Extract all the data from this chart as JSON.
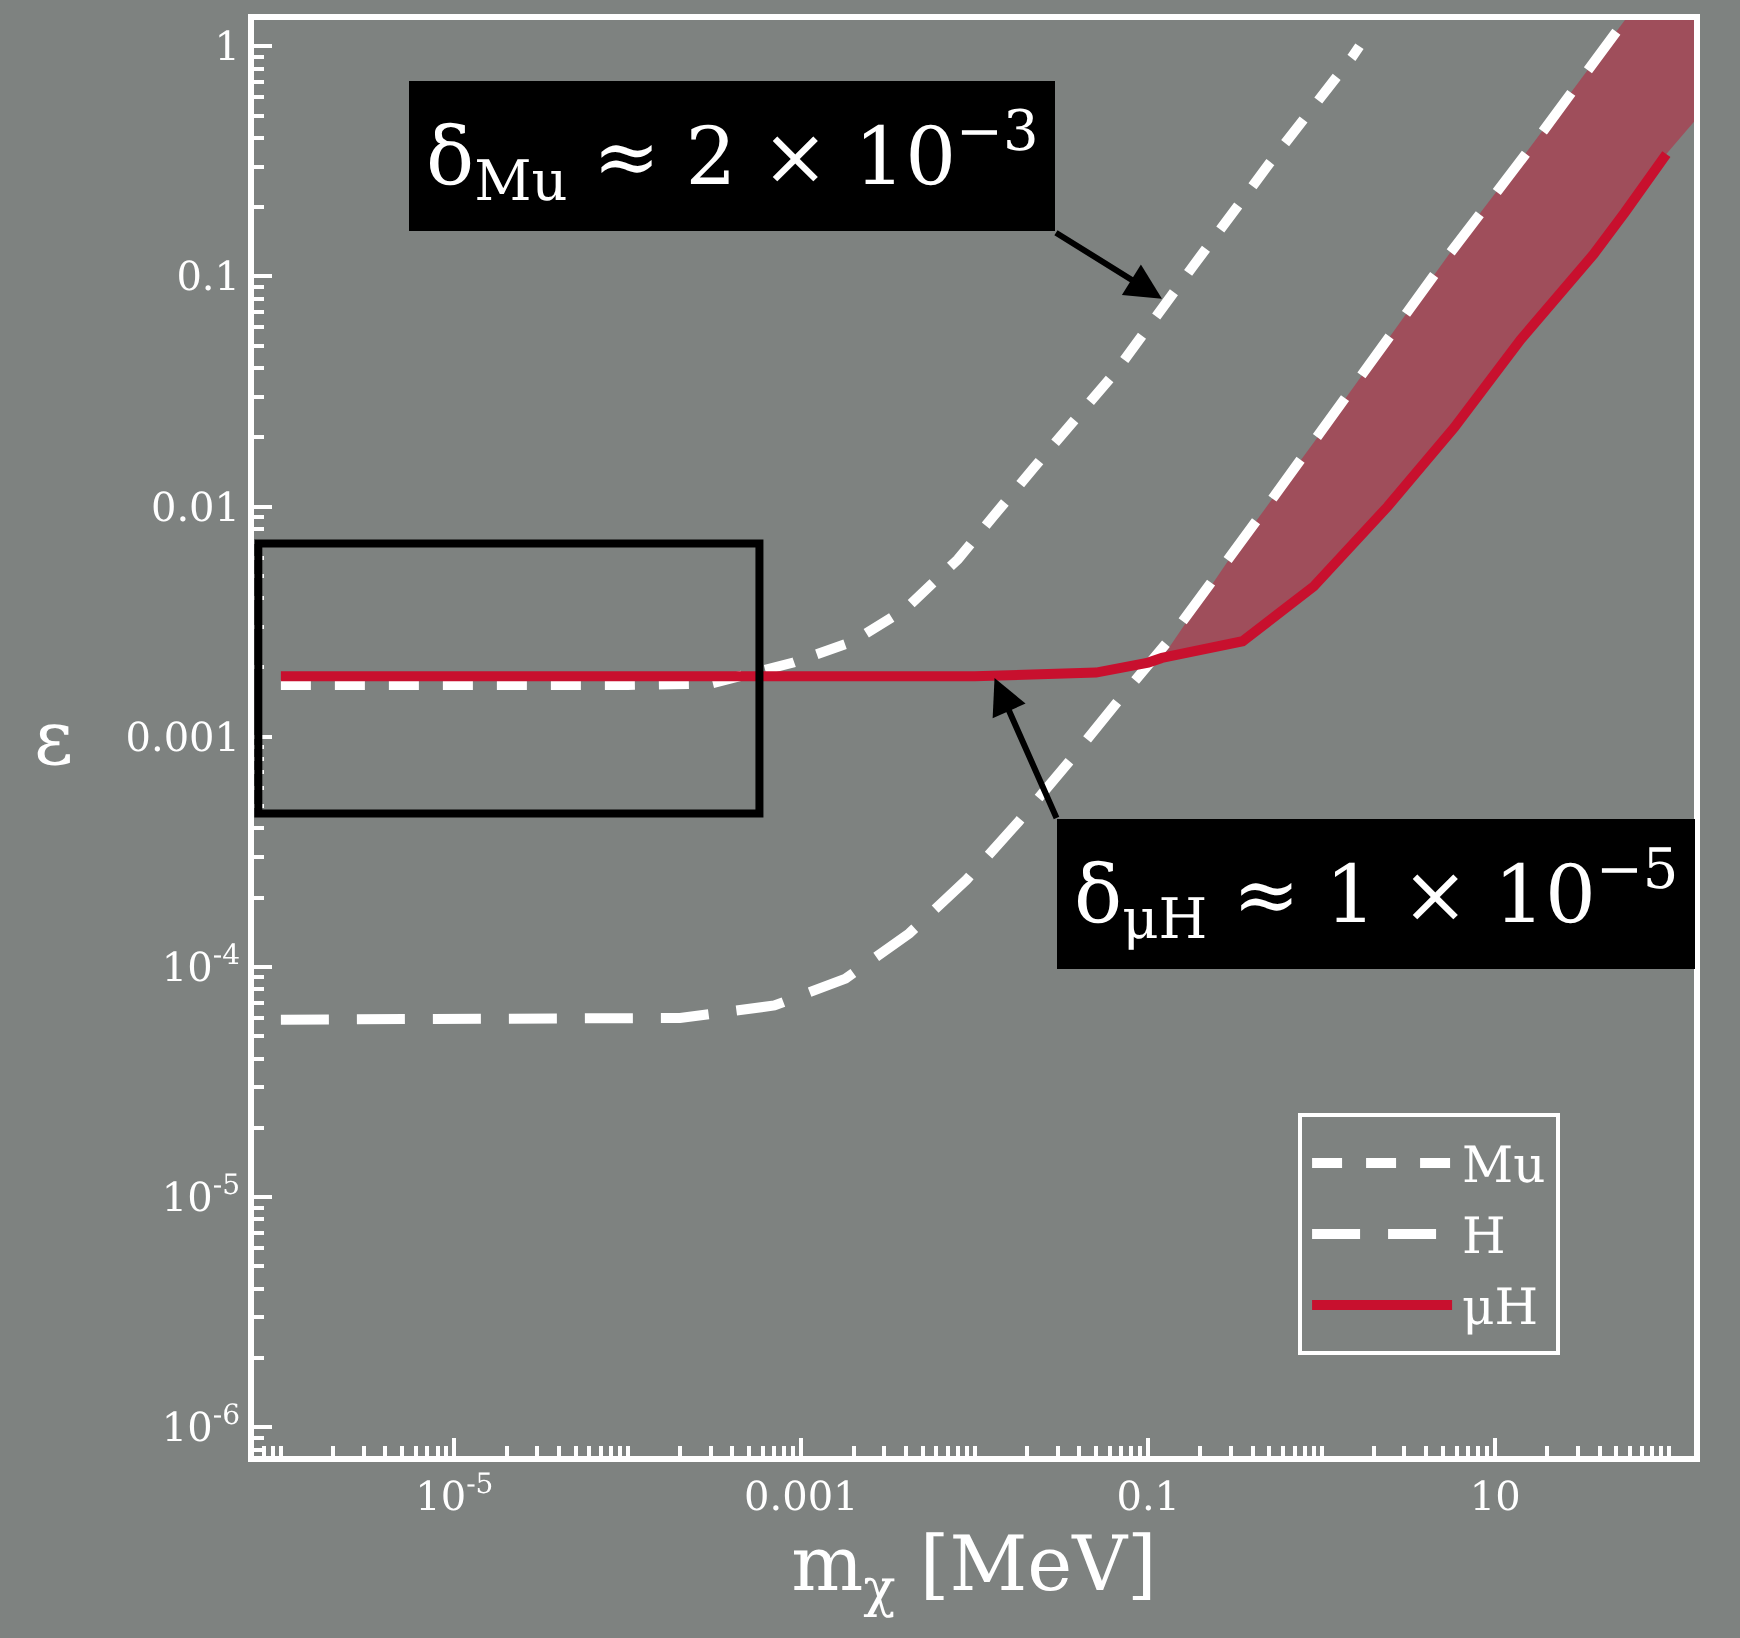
{
  "chart_data": {
    "type": "line",
    "xlabel": "m$_{χ}$ [MeV]",
    "ylabel": "ε",
    "log": "xy",
    "xlim": [
      7e-07,
      140
    ],
    "ylim": [
      7.5e-07,
      1.3
    ],
    "xticks": [
      {
        "value": 8e-07,
        "label": null
      },
      {
        "value": 9e-07,
        "label": null
      },
      {
        "value": 1e-06,
        "label": null
      },
      {
        "value": 2e-06,
        "label": null
      },
      {
        "value": 3e-06,
        "label": null
      },
      {
        "value": 4e-06,
        "label": null
      },
      {
        "value": 5e-06,
        "label": null
      },
      {
        "value": 6e-06,
        "label": null
      },
      {
        "value": 7e-06,
        "label": null
      },
      {
        "value": 8e-06,
        "label": null
      },
      {
        "value": 9e-06,
        "label": null
      },
      {
        "value": 1e-05,
        "label": "10$^{-5}$"
      },
      {
        "value": 2e-05,
        "label": null
      },
      {
        "value": 3e-05,
        "label": null
      },
      {
        "value": 4e-05,
        "label": null
      },
      {
        "value": 5e-05,
        "label": null
      },
      {
        "value": 6e-05,
        "label": null
      },
      {
        "value": 7e-05,
        "label": null
      },
      {
        "value": 8e-05,
        "label": null
      },
      {
        "value": 9e-05,
        "label": null
      },
      {
        "value": 0.0001,
        "label": null
      },
      {
        "value": 0.0002,
        "label": null
      },
      {
        "value": 0.0003,
        "label": null
      },
      {
        "value": 0.0004,
        "label": null
      },
      {
        "value": 0.0005,
        "label": null
      },
      {
        "value": 0.0006,
        "label": null
      },
      {
        "value": 0.0007,
        "label": null
      },
      {
        "value": 0.0008,
        "label": null
      },
      {
        "value": 0.0009,
        "label": null
      },
      0.001,
      {
        "value": 0.002,
        "label": null
      },
      {
        "value": 0.003,
        "label": null
      },
      {
        "value": 0.004,
        "label": null
      },
      {
        "value": 0.005,
        "label": null
      },
      {
        "value": 0.006,
        "label": null
      },
      {
        "value": 0.007,
        "label": null
      },
      {
        "value": 0.008,
        "label": null
      },
      {
        "value": 0.009,
        "label": null
      },
      {
        "value": 0.01,
        "label": null
      },
      {
        "value": 0.02,
        "label": null
      },
      {
        "value": 0.03,
        "label": null
      },
      {
        "value": 0.04,
        "label": null
      },
      {
        "value": 0.05,
        "label": null
      },
      {
        "value": 0.06,
        "label": null
      },
      {
        "value": 0.07,
        "label": null
      },
      {
        "value": 0.08,
        "label": null
      },
      {
        "value": 0.09,
        "label": null
      },
      0.1,
      {
        "value": 0.2,
        "label": null
      },
      {
        "value": 0.3,
        "label": null
      },
      {
        "value": 0.4,
        "label": null
      },
      {
        "value": 0.5,
        "label": null
      },
      {
        "value": 0.6,
        "label": null
      },
      {
        "value": 0.7,
        "label": null
      },
      {
        "value": 0.8,
        "label": null
      },
      {
        "value": 0.9,
        "label": null
      },
      {
        "value": 1,
        "label": null
      },
      {
        "value": 2,
        "label": null
      },
      {
        "value": 3,
        "label": null
      },
      {
        "value": 4,
        "label": null
      },
      {
        "value": 5,
        "label": null
      },
      {
        "value": 6,
        "label": null
      },
      {
        "value": 7,
        "label": null
      },
      {
        "value": 8,
        "label": null
      },
      {
        "value": 9,
        "label": null
      },
      10,
      {
        "value": 20,
        "label": null
      },
      {
        "value": 30,
        "label": null
      },
      {
        "value": 40,
        "label": null
      },
      {
        "value": 50,
        "label": null
      },
      {
        "value": 60,
        "label": null
      },
      {
        "value": 70,
        "label": null
      },
      {
        "value": 80,
        "label": null
      },
      {
        "value": 90,
        "label": null
      },
      {
        "value": 100,
        "label": null
      }
    ],
    "yticks": [
      {
        "value": 8e-07,
        "label": null
      },
      {
        "value": 9e-07,
        "label": null
      },
      {
        "value": 1e-06,
        "label": "10$^{-6}$"
      },
      {
        "value": 2e-06,
        "label": null
      },
      {
        "value": 3e-06,
        "label": null
      },
      {
        "value": 4e-06,
        "label": null
      },
      {
        "value": 5e-06,
        "label": null
      },
      {
        "value": 6e-06,
        "label": null
      },
      {
        "value": 7e-06,
        "label": null
      },
      {
        "value": 8e-06,
        "label": null
      },
      {
        "value": 9e-06,
        "label": null
      },
      {
        "value": 1e-05,
        "label": "10$^{-5}$"
      },
      {
        "value": 2e-05,
        "label": null
      },
      {
        "value": 3e-05,
        "label": null
      },
      {
        "value": 4e-05,
        "label": null
      },
      {
        "value": 5e-05,
        "label": null
      },
      {
        "value": 6e-05,
        "label": null
      },
      {
        "value": 7e-05,
        "label": null
      },
      {
        "value": 8e-05,
        "label": null
      },
      {
        "value": 9e-05,
        "label": null
      },
      {
        "value": 0.0001,
        "label": "10$^{-4}$"
      },
      {
        "value": 0.0002,
        "label": null
      },
      {
        "value": 0.0003,
        "label": null
      },
      {
        "value": 0.0004,
        "label": null
      },
      {
        "value": 0.0005,
        "label": null
      },
      {
        "value": 0.0006,
        "label": null
      },
      {
        "value": 0.0007,
        "label": null
      },
      {
        "value": 0.0008,
        "label": null
      },
      {
        "value": 0.0009,
        "label": null
      },
      0.001,
      {
        "value": 0.002,
        "label": null
      },
      {
        "value": 0.003,
        "label": null
      },
      {
        "value": 0.004,
        "label": null
      },
      {
        "value": 0.005,
        "label": null
      },
      {
        "value": 0.006,
        "label": null
      },
      {
        "value": 0.007,
        "label": null
      },
      {
        "value": 0.008,
        "label": null
      },
      {
        "value": 0.009,
        "label": null
      },
      0.01,
      {
        "value": 0.02,
        "label": null
      },
      {
        "value": 0.03,
        "label": null
      },
      {
        "value": 0.04,
        "label": null
      },
      {
        "value": 0.05,
        "label": null
      },
      {
        "value": 0.06,
        "label": null
      },
      {
        "value": 0.07,
        "label": null
      },
      {
        "value": 0.08,
        "label": null
      },
      {
        "value": 0.09,
        "label": null
      },
      0.1,
      {
        "value": 0.2,
        "label": null
      },
      {
        "value": 0.3,
        "label": null
      },
      {
        "value": 0.4,
        "label": null
      },
      {
        "value": 0.5,
        "label": null
      },
      {
        "value": 0.6,
        "label": null
      },
      {
        "value": 0.7,
        "label": null
      },
      {
        "value": 0.8,
        "label": null
      },
      {
        "value": 0.9,
        "label": null
      },
      1
    ],
    "legend": "bottom right",
    "annotations": [
      {
        "text": "δ$_{Mu}$ ≈ 2 × 10$^{−3}$",
        "x": 0.12,
        "y": 0.08
      },
      {
        "text": "δ$_{μH}$ ≈ 1 × 10$^{−5}$",
        "x": 0.013,
        "y": 0.0018
      }
    ],
    "series": [
      {
        "name": "Mu",
        "color": "#ffffff",
        "line_style": "dashed",
        "x": [
          1e-06,
          0.0001,
          0.0003,
          0.0009,
          0.002,
          0.004,
          0.008,
          0.013,
          0.022,
          0.064,
          0.18,
          0.5,
          1.5,
          1.65
        ],
        "values": [
          0.00168,
          0.00168,
          0.0017,
          0.0021,
          0.0026,
          0.0036,
          0.0059,
          0.0092,
          0.0148,
          0.038,
          0.11,
          0.31,
          0.9,
          1.0
        ]
      },
      {
        "name": "H",
        "color": "#ffffff",
        "line_style": "dashed",
        "x": [
          1e-06,
          0.0002,
          0.0007,
          0.0018,
          0.0042,
          0.009,
          0.018,
          0.036,
          0.068,
          0.13,
          0.45,
          1.6,
          5.4,
          19,
          56
        ],
        "values": [
          5.9e-05,
          6e-05,
          6.8e-05,
          8.9e-05,
          0.00014,
          0.00024,
          0.00043,
          0.0008,
          0.00145,
          0.0026,
          0.0093,
          0.035,
          0.124,
          0.43,
          1.3
        ]
      },
      {
        "name": "μH",
        "color": "#c8102e",
        "line_style": "solid",
        "x": [
          1e-06,
          0.001,
          0.01,
          0.05,
          0.1,
          0.12,
          0.35,
          0.9,
          2.4,
          5.8,
          14,
          37,
          56,
          97,
          140
        ],
        "values": [
          0.00183,
          0.00183,
          0.00183,
          0.0019,
          0.0021,
          0.0022,
          0.0026,
          0.0045,
          0.01,
          0.022,
          0.053,
          0.125,
          0.19,
          0.34,
          null
        ],
        "lower": [
          null,
          null,
          null,
          null,
          null,
          0.0022,
          0.0026,
          0.0045,
          0.01,
          0.022,
          0.053,
          0.125,
          0.19,
          0.34,
          0.47
        ],
        "upper": [
          null,
          null,
          null,
          null,
          null,
          0.0022,
          0.0072,
          0.019,
          0.053,
          0.134,
          0.32,
          0.85,
          1.3,
          1.3,
          1.3
        ]
      }
    ]
  }
}
